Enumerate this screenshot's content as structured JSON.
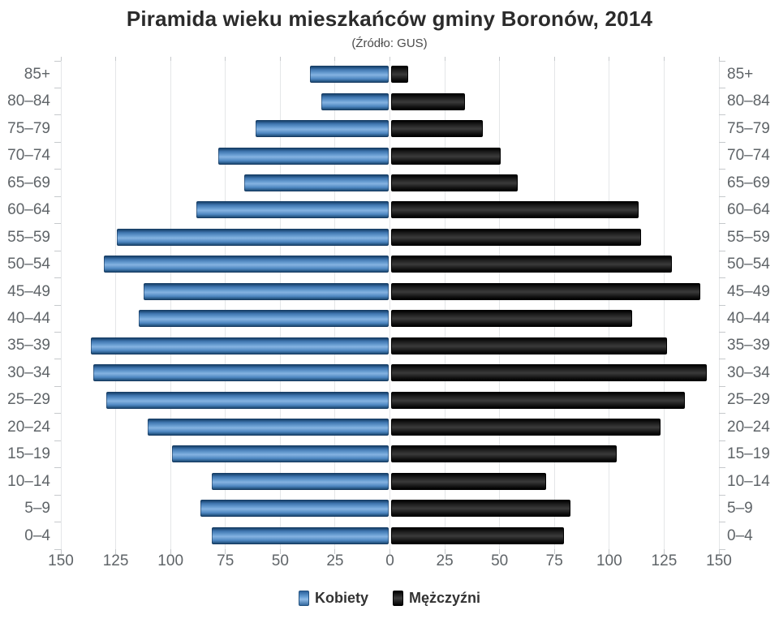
{
  "header": {
    "title": "Piramida wieku mieszkańców gminy Boronów, 2014",
    "subtitle": "(Źródło: GUS)"
  },
  "chart_data": {
    "type": "bar",
    "variant": "population_pyramid",
    "orientation": "horizontal",
    "title": "Piramida wieku mieszkańców gminy Boronów, 2014",
    "subtitle": "(Źródło: GUS)",
    "grid": true,
    "legend_position": "bottom",
    "categories_top_to_bottom": [
      "85+",
      "80–84",
      "75–79",
      "70–74",
      "65–69",
      "60–64",
      "55–59",
      "50–54",
      "45–49",
      "40–44",
      "35–39",
      "30–34",
      "25–29",
      "20–24",
      "15–19",
      "10–14",
      "5–9",
      "0–4"
    ],
    "series": [
      {
        "name": "Kobiety",
        "side": "left",
        "color": "#4e8bc8",
        "values": [
          36,
          31,
          61,
          78,
          66,
          88,
          124,
          130,
          112,
          114,
          136,
          135,
          129,
          110,
          99,
          81,
          86,
          81
        ]
      },
      {
        "name": "Mężczyźni",
        "side": "right",
        "color": "#1b1b1b",
        "values": [
          8,
          34,
          42,
          50,
          58,
          113,
          114,
          128,
          141,
          110,
          126,
          144,
          134,
          123,
          103,
          71,
          82,
          79
        ]
      }
    ],
    "x_axis": {
      "min": 0,
      "max": 150,
      "tick_interval": 25,
      "tick_labels": [
        "150",
        "125",
        "100",
        "75",
        "50",
        "25",
        "0",
        "25",
        "50",
        "75",
        "100",
        "125",
        "150"
      ]
    }
  },
  "colors": {
    "female_bar": "#4e8bc8",
    "male_bar": "#1b1b1b",
    "gridline": "#e4e6e8",
    "axis_text": "#5f6468",
    "title_text": "#2b2b2b"
  }
}
